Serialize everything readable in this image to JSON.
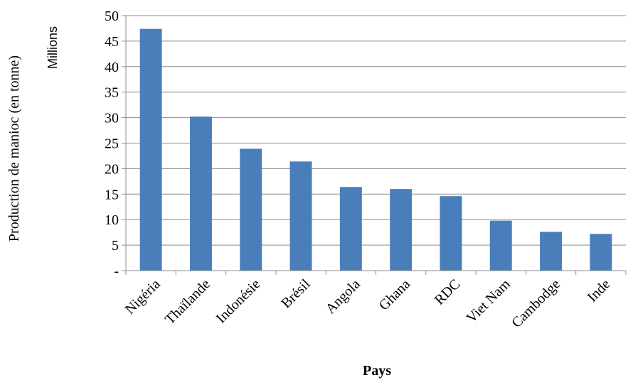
{
  "chart_data": {
    "type": "bar",
    "title": "",
    "xlabel": "Pays",
    "ylabel": "Production de manioc (en tonne)",
    "yunit": "Millions",
    "categories": [
      "Nigéria",
      "Thaïlande",
      "Indonésie",
      "Brésil",
      "Angola",
      "Ghana",
      "RDC",
      "Viet Nam",
      "Cambodge",
      "Inde"
    ],
    "values": [
      47.4,
      30.2,
      23.9,
      21.4,
      16.4,
      16.0,
      14.6,
      9.8,
      7.6,
      7.2
    ],
    "ylim": [
      0,
      50
    ],
    "yticks": [
      0,
      5,
      10,
      15,
      20,
      25,
      30,
      35,
      40,
      45,
      50
    ],
    "ytick_labels": [
      "-",
      "5",
      "10",
      "15",
      "20",
      "25",
      "30",
      "35",
      "40",
      "45",
      "50"
    ],
    "grid": true,
    "legend": "none",
    "bar_color": "#4a7ebb",
    "grid_color": "#8c8c8c",
    "axis_color": "#8c8c8c"
  }
}
